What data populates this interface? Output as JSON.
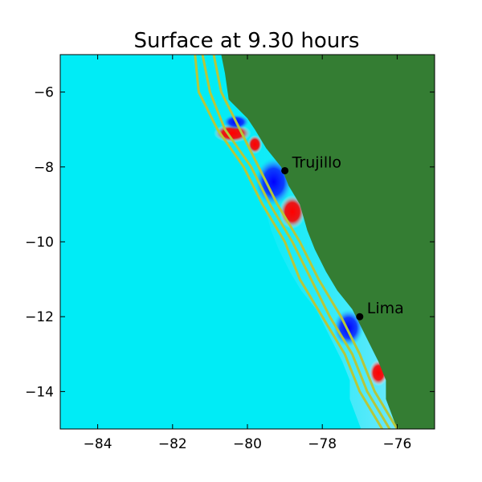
{
  "chart_data": {
    "type": "heatmap",
    "title": "Surface at 9.30 hours",
    "xlabel": "",
    "ylabel": "",
    "xlim": [
      -85,
      -75
    ],
    "ylim": [
      -15,
      -5
    ],
    "x_ticks": [
      -84,
      -82,
      -80,
      -78,
      -76
    ],
    "y_ticks": [
      -6,
      -8,
      -10,
      -12,
      -14
    ],
    "x_tick_labels": [
      "−84",
      "−82",
      "−80",
      "−78",
      "−76"
    ],
    "y_tick_labels": [
      "−6",
      "−8",
      "−10",
      "−12",
      "−14"
    ],
    "grid": false,
    "colors": {
      "ocean": "#00ecf6",
      "land": "#347d33",
      "shelf_contour": "#b7c73a",
      "positive_anomaly": "#ff0000",
      "negative_anomaly": "#0000ff"
    },
    "locations": [
      {
        "name": "Trujillo",
        "lon": -79.0,
        "lat": -8.1
      },
      {
        "name": "Lima",
        "lon": -77.0,
        "lat": -12.0
      }
    ],
    "coastline": [
      [
        -80.7,
        -5.0
      ],
      [
        -80.6,
        -5.5
      ],
      [
        -80.5,
        -6.2
      ],
      [
        -80.0,
        -6.7
      ],
      [
        -79.8,
        -7.0
      ],
      [
        -79.5,
        -7.5
      ],
      [
        -79.1,
        -8.0
      ],
      [
        -78.9,
        -8.5
      ],
      [
        -78.6,
        -9.0
      ],
      [
        -78.4,
        -9.7
      ],
      [
        -78.2,
        -10.2
      ],
      [
        -77.9,
        -10.8
      ],
      [
        -77.6,
        -11.3
      ],
      [
        -77.2,
        -11.8
      ],
      [
        -77.0,
        -12.2
      ],
      [
        -76.8,
        -12.6
      ],
      [
        -76.5,
        -13.2
      ],
      [
        -76.3,
        -13.7
      ],
      [
        -76.3,
        -14.2
      ],
      [
        -76.0,
        -15.0
      ]
    ],
    "shelf_contours": [
      [
        [
          -81.4,
          -5.0
        ],
        [
          -81.3,
          -6.0
        ],
        [
          -80.8,
          -7.0
        ],
        [
          -80.1,
          -8.0
        ],
        [
          -79.6,
          -9.0
        ],
        [
          -79.0,
          -10.0
        ],
        [
          -78.6,
          -11.0
        ],
        [
          -78.0,
          -12.0
        ],
        [
          -77.4,
          -13.0
        ],
        [
          -77.0,
          -14.0
        ],
        [
          -76.4,
          -15.0
        ]
      ],
      [
        [
          -81.2,
          -5.0
        ],
        [
          -81.0,
          -6.0
        ],
        [
          -80.6,
          -7.0
        ],
        [
          -79.9,
          -8.0
        ],
        [
          -79.4,
          -9.0
        ],
        [
          -78.8,
          -10.0
        ],
        [
          -78.3,
          -11.0
        ],
        [
          -77.8,
          -12.0
        ],
        [
          -77.2,
          -13.0
        ],
        [
          -76.8,
          -14.0
        ],
        [
          -76.2,
          -15.0
        ]
      ],
      [
        [
          -80.9,
          -5.0
        ],
        [
          -80.7,
          -6.0
        ],
        [
          -80.2,
          -7.0
        ],
        [
          -79.7,
          -8.0
        ],
        [
          -79.2,
          -9.0
        ],
        [
          -78.6,
          -10.0
        ],
        [
          -78.1,
          -11.0
        ],
        [
          -77.5,
          -12.0
        ],
        [
          -77.0,
          -13.0
        ],
        [
          -76.6,
          -14.0
        ],
        [
          -76.0,
          -15.0
        ]
      ]
    ],
    "anomalies": [
      {
        "sign": "positive",
        "lon": -80.4,
        "lat": -7.1,
        "rx": 0.5,
        "ry": 0.25
      },
      {
        "sign": "positive",
        "lon": -79.8,
        "lat": -7.4,
        "rx": 0.2,
        "ry": 0.25
      },
      {
        "sign": "negative",
        "lon": -80.3,
        "lat": -6.8,
        "rx": 0.35,
        "ry": 0.2
      },
      {
        "sign": "negative",
        "lon": -79.3,
        "lat": -8.4,
        "rx": 0.5,
        "ry": 0.65
      },
      {
        "sign": "positive",
        "lon": -78.8,
        "lat": -9.2,
        "rx": 0.35,
        "ry": 0.45
      },
      {
        "sign": "negative",
        "lon": -77.3,
        "lat": -12.3,
        "rx": 0.4,
        "ry": 0.5
      },
      {
        "sign": "positive",
        "lon": -76.5,
        "lat": -13.5,
        "rx": 0.25,
        "ry": 0.35
      }
    ]
  }
}
